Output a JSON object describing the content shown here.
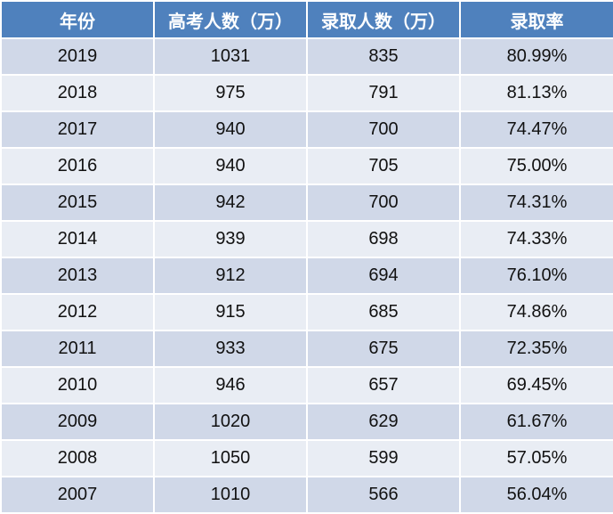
{
  "chart_data": {
    "type": "table",
    "columns": [
      "年份",
      "高考人数（万）",
      "录取人数（万）",
      "录取率"
    ],
    "rows": [
      [
        "2019",
        "1031",
        "835",
        "80.99%"
      ],
      [
        "2018",
        "975",
        "791",
        "81.13%"
      ],
      [
        "2017",
        "940",
        "700",
        "74.47%"
      ],
      [
        "2016",
        "940",
        "705",
        "75.00%"
      ],
      [
        "2015",
        "942",
        "700",
        "74.31%"
      ],
      [
        "2014",
        "939",
        "698",
        "74.33%"
      ],
      [
        "2013",
        "912",
        "694",
        "76.10%"
      ],
      [
        "2012",
        "915",
        "685",
        "74.86%"
      ],
      [
        "2011",
        "933",
        "675",
        "72.35%"
      ],
      [
        "2010",
        "946",
        "657",
        "69.45%"
      ],
      [
        "2009",
        "1020",
        "629",
        "61.67%"
      ],
      [
        "2008",
        "1050",
        "599",
        "57.05%"
      ],
      [
        "2007",
        "1010",
        "566",
        "56.04%"
      ]
    ]
  },
  "colors": {
    "header_bg": "#4f81bd",
    "header_text": "#ffffff",
    "row_band_dark": "#d0d8e8",
    "row_band_light": "#e9edf4"
  }
}
